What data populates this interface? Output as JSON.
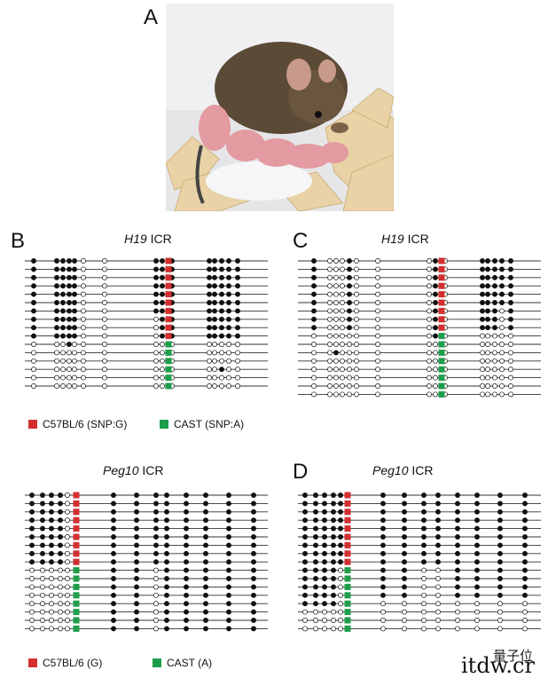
{
  "panels": {
    "A": {
      "letter": "A"
    },
    "B": {
      "letter": "B",
      "gene": "H19",
      "suffix": " ICR"
    },
    "C": {
      "letter": "C",
      "gene": "H19",
      "suffix": " ICR"
    },
    "Pb": {
      "gene": "Peg10",
      "suffix": " ICR"
    },
    "D": {
      "letter": "D",
      "gene": "Peg10",
      "suffix": " ICR"
    }
  },
  "legend_top": {
    "red_label": "C57BL/6 (SNP:G)",
    "green_label": "CAST (SNP:A)"
  },
  "legend_bottom": {
    "red_label": "C57BL/6 (G)",
    "green_label": "CAST (A)"
  },
  "colors": {
    "red": "#d32f2f",
    "green": "#1e9e4a"
  },
  "watermark": {
    "text": "量子位",
    "url_text": "itdw.cr"
  },
  "methylation": {
    "B": {
      "rows": 16,
      "red_rows": 10,
      "pattern": [
        "11111-1-1111",
        "11111-1-1111",
        "11111-1-1111",
        "11111-1-1111",
        "11111-1-1111",
        "11111-1-1111",
        "11111-1-1111",
        "11111-1-1111",
        "11111-1-1111",
        "11111-1-1111",
        "00100-0-0000",
        "00000-0-0010",
        "00000-0-0000",
        "00000-0-0000",
        "00000-0-0000",
        "00000-0-0000"
      ]
    },
    "C": {
      "rows": 17,
      "red_rows": 9
    },
    "Pb": {
      "rows": 17,
      "red_rows": 9
    },
    "D": {
      "rows": 17,
      "red_rows": 9
    }
  }
}
